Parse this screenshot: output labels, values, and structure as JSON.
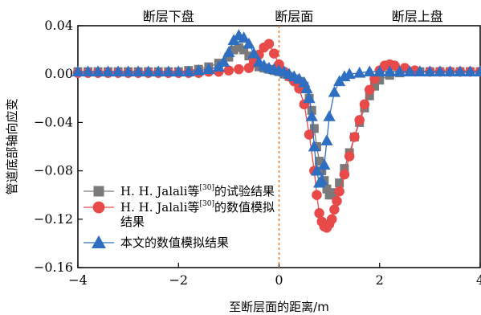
{
  "chart_data": {
    "type": "scatter",
    "xlabel": "至断层面的距离/m",
    "ylabel": "管道底部轴向应变",
    "xlim": [
      -4,
      4
    ],
    "ylim": [
      -0.16,
      0.04
    ],
    "x_ticks": [
      -4,
      -2,
      0,
      2,
      4
    ],
    "y_ticks": [
      0.04,
      0.0,
      -0.04,
      -0.08,
      -0.12,
      -0.16
    ],
    "x_tick_labels": [
      "−4",
      "−2",
      "0",
      "2",
      "4"
    ],
    "y_tick_labels": [
      "0.04",
      "0.00",
      "−0.04",
      "−0.08",
      "−0.12",
      "−0.16"
    ],
    "fault_line_x": 0,
    "region_labels": [
      {
        "text": "断层下盘",
        "x": -2.2
      },
      {
        "text": "断层面",
        "x": 0.3
      },
      {
        "text": "断层上盘",
        "x": 2.75
      }
    ],
    "legend_position": "bottom-left",
    "series": [
      {
        "name": "H. H. Jalali等[30]的试验结果",
        "name_parts": {
          "pre": "H. H. Jalali等",
          "sup": "[30]",
          "post": "的试验结果"
        },
        "marker": "square",
        "color": "#7a7a7a",
        "x": [
          -4.0,
          -3.8,
          -3.6,
          -3.4,
          -3.2,
          -3.0,
          -2.8,
          -2.6,
          -2.4,
          -2.2,
          -2.0,
          -1.8,
          -1.6,
          -1.4,
          -1.2,
          -1.0,
          -0.9,
          -0.8,
          -0.7,
          -0.6,
          -0.5,
          -0.4,
          -0.3,
          -0.2,
          -0.1,
          0.0,
          0.1,
          0.2,
          0.3,
          0.4,
          0.5,
          0.6,
          0.65,
          0.7,
          0.75,
          0.8,
          0.85,
          0.9,
          0.95,
          1.0,
          1.05,
          1.1,
          1.2,
          1.3,
          1.4,
          1.5,
          1.6,
          1.7,
          1.8,
          1.9,
          2.0,
          2.2,
          2.4,
          2.6,
          2.8,
          3.0,
          3.2,
          3.4,
          3.6,
          3.8,
          4.0
        ],
        "y": [
          0.002,
          0.002,
          0.002,
          0.002,
          0.002,
          0.002,
          0.002,
          0.002,
          0.002,
          0.002,
          0.002,
          0.003,
          0.004,
          0.006,
          0.009,
          0.014,
          0.02,
          0.022,
          0.02,
          0.015,
          0.009,
          0.006,
          0.005,
          0.004,
          0.003,
          0.002,
          0.0,
          -0.002,
          -0.004,
          -0.006,
          -0.01,
          -0.02,
          -0.03,
          -0.045,
          -0.06,
          -0.072,
          -0.08,
          -0.088,
          -0.095,
          -0.1,
          -0.1,
          -0.098,
          -0.09,
          -0.078,
          -0.065,
          -0.052,
          -0.04,
          -0.028,
          -0.018,
          -0.01,
          -0.005,
          -0.001,
          0.001,
          0.002,
          0.002,
          0.002,
          0.002,
          0.002,
          0.002,
          0.002,
          0.002
        ]
      },
      {
        "name": "H. H. Jalali等[30]的数值模拟结果",
        "name_parts": {
          "pre": "H. H. Jalali等",
          "sup": "[30]",
          "post": "的数值模拟",
          "line2": "结果"
        },
        "marker": "circle",
        "color": "#e84a4a",
        "x": [
          -4.0,
          -3.8,
          -3.6,
          -3.4,
          -3.2,
          -3.0,
          -2.8,
          -2.6,
          -2.4,
          -2.2,
          -2.0,
          -1.8,
          -1.6,
          -1.4,
          -1.2,
          -1.0,
          -0.8,
          -0.6,
          -0.5,
          -0.4,
          -0.3,
          -0.2,
          -0.1,
          0.0,
          0.1,
          0.2,
          0.3,
          0.4,
          0.5,
          0.6,
          0.7,
          0.75,
          0.8,
          0.85,
          0.9,
          0.95,
          1.0,
          1.05,
          1.1,
          1.15,
          1.2,
          1.3,
          1.4,
          1.5,
          1.6,
          1.7,
          1.8,
          1.9,
          2.0,
          2.1,
          2.2,
          2.3,
          2.5,
          2.7,
          3.0,
          3.2,
          3.4,
          3.6,
          3.8,
          4.0
        ],
        "y": [
          0.001,
          0.001,
          0.001,
          0.001,
          0.001,
          0.001,
          0.001,
          0.001,
          0.001,
          0.001,
          0.001,
          0.001,
          0.001,
          0.002,
          0.002,
          0.003,
          0.004,
          0.005,
          0.01,
          0.016,
          0.022,
          0.025,
          0.017,
          0.008,
          0.002,
          -0.002,
          -0.006,
          -0.012,
          -0.025,
          -0.05,
          -0.08,
          -0.1,
          -0.115,
          -0.122,
          -0.126,
          -0.127,
          -0.124,
          -0.12,
          -0.112,
          -0.105,
          -0.097,
          -0.083,
          -0.068,
          -0.052,
          -0.038,
          -0.025,
          -0.013,
          -0.004,
          0.003,
          0.007,
          0.008,
          0.007,
          0.005,
          0.003,
          0.002,
          0.002,
          0.002,
          0.002,
          0.002,
          0.002
        ]
      },
      {
        "name": "本文的数值模拟结果",
        "name_parts": {
          "pre": "本文的数值模拟结果"
        },
        "marker": "triangle",
        "color": "#2f6fc2",
        "x": [
          -4.0,
          -3.8,
          -3.6,
          -3.4,
          -3.2,
          -3.0,
          -2.8,
          -2.6,
          -2.4,
          -2.2,
          -2.0,
          -1.8,
          -1.6,
          -1.4,
          -1.2,
          -1.1,
          -1.0,
          -0.9,
          -0.8,
          -0.7,
          -0.6,
          -0.5,
          -0.4,
          -0.3,
          -0.2,
          -0.1,
          0.0,
          0.1,
          0.2,
          0.3,
          0.4,
          0.5,
          0.55,
          0.6,
          0.65,
          0.7,
          0.75,
          0.8,
          0.85,
          0.9,
          0.95,
          1.0,
          1.1,
          1.2,
          1.3,
          1.4,
          1.6,
          1.8,
          2.0,
          2.2,
          2.4,
          2.6,
          2.8,
          3.0,
          3.2,
          3.4,
          3.6,
          3.8,
          4.0
        ],
        "y": [
          0.002,
          0.002,
          0.002,
          0.002,
          0.002,
          0.002,
          0.002,
          0.002,
          0.002,
          0.002,
          0.002,
          0.002,
          0.003,
          0.004,
          0.006,
          0.01,
          0.018,
          0.028,
          0.032,
          0.03,
          0.025,
          0.017,
          0.01,
          0.007,
          0.005,
          0.004,
          0.003,
          0.002,
          0.0,
          -0.002,
          -0.004,
          -0.007,
          -0.012,
          -0.02,
          -0.035,
          -0.06,
          -0.08,
          -0.09,
          -0.088,
          -0.075,
          -0.055,
          -0.035,
          -0.015,
          -0.006,
          -0.002,
          0.0,
          0.001,
          0.002,
          0.002,
          0.002,
          0.002,
          0.002,
          0.002,
          0.002,
          0.002,
          0.002,
          0.002,
          0.002,
          0.002
        ]
      }
    ]
  }
}
